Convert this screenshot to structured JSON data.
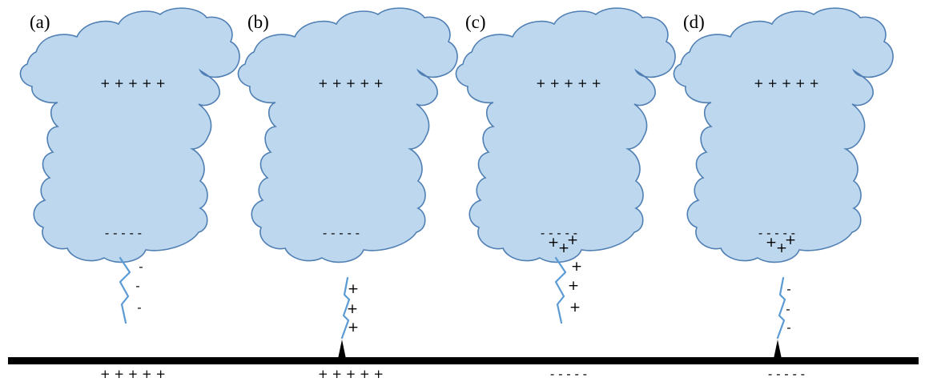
{
  "colors": {
    "cloud_fill": "#bdd7ee",
    "cloud_stroke": "#4f7fb3",
    "bolt": "#5b9bd5",
    "ground": "#000000"
  },
  "panels": [
    {
      "label": "(a)",
      "cloud_top_charges": "+ + + + +",
      "cloud_bottom_charges": "- - - - -",
      "cloud_pocket_charges": "",
      "bolt_charges": [
        "-",
        "-",
        "-"
      ],
      "ground_charges": "+ + + + +",
      "has_spike": false
    },
    {
      "label": "(b)",
      "cloud_top_charges": "+ + + + +",
      "cloud_bottom_charges": "- - - - -",
      "cloud_pocket_charges": "",
      "bolt_charges": [
        "+",
        "+",
        "+"
      ],
      "ground_charges": "+ + + + +",
      "has_spike": true
    },
    {
      "label": "(c)",
      "cloud_top_charges": "+ + + + +",
      "cloud_bottom_charges": "- - - - -",
      "cloud_pocket_charges": "+ + +",
      "bolt_charges": [
        "+",
        "+",
        "+"
      ],
      "ground_charges": "- - - - -",
      "has_spike": false
    },
    {
      "label": "(d)",
      "cloud_top_charges": "+ + + + +",
      "cloud_bottom_charges": "- - - - -",
      "cloud_pocket_charges": "+ + +",
      "bolt_charges": [
        "-",
        "-",
        "-"
      ],
      "ground_charges": "- - - - -",
      "has_spike": true
    }
  ]
}
